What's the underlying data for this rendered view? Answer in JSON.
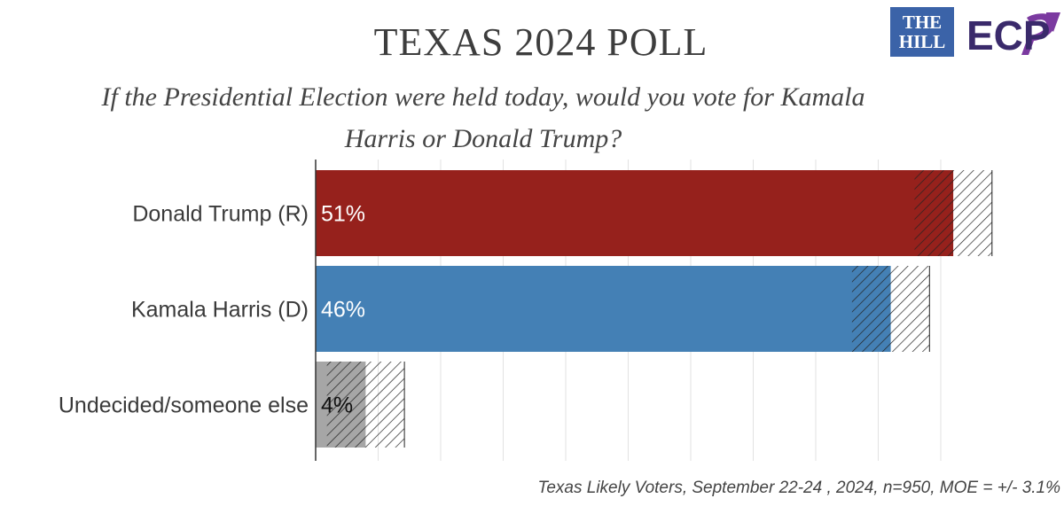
{
  "logos": {
    "the_hill": "THE\nHILL",
    "ecp": "ECP",
    "the_hill_color": "#3b63a8",
    "ecp_color": "#3a2a6b"
  },
  "chart_data": {
    "type": "bar",
    "orientation": "horizontal",
    "title": "TEXAS 2024 POLL",
    "subtitle": "If the Presidential Election were held today, would you vote for Kamala Harris or Donald Trump?",
    "categories": [
      "Donald Trump (R)",
      "Kamala Harris (D)",
      "Undecided/someone else"
    ],
    "values": [
      51,
      46,
      4
    ],
    "value_labels": [
      "51%",
      "46%",
      "4%"
    ],
    "unit": "%",
    "margin_of_error": 3.1,
    "colors": [
      "#96211c",
      "#4480b5",
      "#a6a6a6"
    ],
    "value_label_colors": [
      "#ffffff",
      "#ffffff",
      "#111111"
    ],
    "xlim": [
      0,
      52
    ],
    "grid": true,
    "legend": "none",
    "footnote": "Texas Likely Voters, September 22-24 , 2024, n=950, MOE = +/- 3.1%"
  }
}
